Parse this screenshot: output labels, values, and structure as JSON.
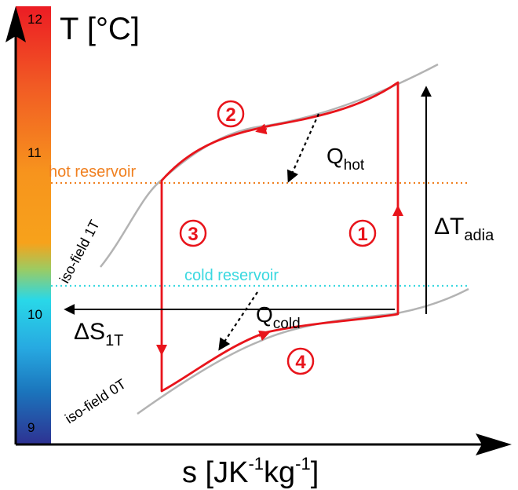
{
  "axes": {
    "y_label": "T [°C]",
    "x_label": {
      "base": "s [JK",
      "exp1": "-1",
      "mid": "kg",
      "exp2": "-1",
      "end": "]"
    },
    "ticks": [
      "12",
      "11",
      "10",
      "9"
    ]
  },
  "reservoirs": {
    "hot": "hot reservoir",
    "cold": "cold reservoir"
  },
  "isofields": {
    "high": "iso-field 1T",
    "low": "iso-field 0T"
  },
  "heat": {
    "hot": {
      "base": "Q",
      "sub": "hot"
    },
    "cold": {
      "base": "Q",
      "sub": "cold"
    }
  },
  "deltas": {
    "adiabatic": {
      "base": "ΔT",
      "sub": "adia"
    },
    "entropy": {
      "base": "ΔS",
      "sub": "1T"
    }
  },
  "steps": [
    "1",
    "2",
    "3",
    "4"
  ],
  "colors": {
    "cycle": "#e8141b",
    "isofield": "#b3b3b3",
    "hot_line": "#f08020",
    "cold_line": "#3ad8e0",
    "axis": "#000000"
  }
}
